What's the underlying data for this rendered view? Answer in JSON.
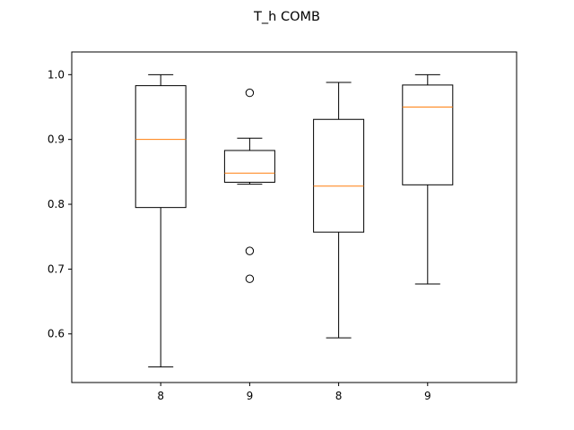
{
  "chart_data": {
    "type": "box",
    "title": "T_h COMB",
    "categories": [
      "8",
      "9",
      "8",
      "9"
    ],
    "ylim": [
      0.525,
      1.035
    ],
    "yticks": [
      0.6,
      0.7,
      0.8,
      0.9,
      1.0
    ],
    "ytick_labels": [
      "0.6",
      "0.7",
      "0.8",
      "0.9",
      "1.0"
    ],
    "grid": false,
    "boxes": [
      {
        "category": "8",
        "whisker_low": 0.549,
        "q1": 0.795,
        "median": 0.9,
        "q3": 0.983,
        "whisker_high": 1.0,
        "outliers": []
      },
      {
        "category": "9",
        "whisker_low": 0.831,
        "q1": 0.834,
        "median": 0.848,
        "q3": 0.883,
        "whisker_high": 0.902,
        "outliers": [
          0.972,
          0.728,
          0.685
        ]
      },
      {
        "category": "8",
        "whisker_low": 0.594,
        "q1": 0.757,
        "median": 0.828,
        "q3": 0.931,
        "whisker_high": 0.988,
        "outliers": []
      },
      {
        "category": "9",
        "whisker_low": 0.677,
        "q1": 0.83,
        "median": 0.95,
        "q3": 0.984,
        "whisker_high": 1.0,
        "outliers": []
      }
    ],
    "colors": {
      "box": "#000000",
      "median": "#ff7f0e",
      "outlier_edge": "#000000"
    }
  }
}
